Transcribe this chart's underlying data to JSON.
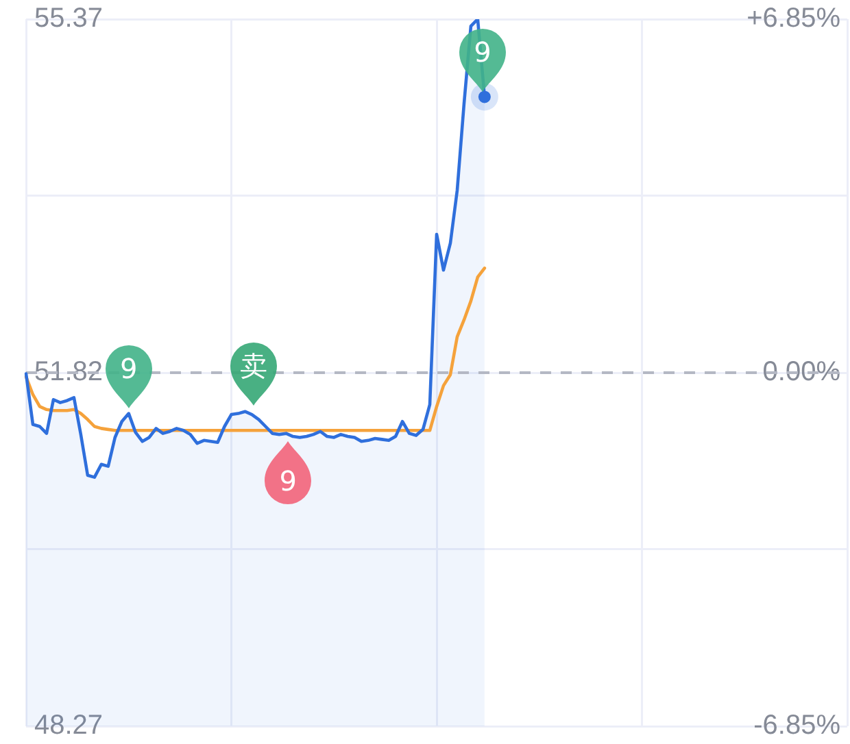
{
  "chart_data": {
    "type": "line",
    "categories": [
      null,
      null,
      null,
      null,
      null,
      null,
      null,
      null,
      null,
      null,
      null,
      null,
      null,
      null,
      null,
      null,
      null,
      null,
      null,
      null,
      null,
      null,
      null,
      null,
      null,
      null,
      null,
      null,
      null,
      null,
      null,
      null,
      null,
      null,
      null,
      null,
      null,
      null,
      null,
      null,
      null,
      null,
      null,
      null,
      null,
      null,
      null,
      null,
      null,
      null,
      null,
      null,
      null,
      null,
      null,
      null,
      null,
      null,
      null,
      null,
      null,
      null,
      null,
      null,
      null,
      null,
      null,
      null,
      null,
      null,
      null,
      null,
      null,
      null,
      null,
      null,
      null,
      null,
      null,
      null,
      null,
      null,
      null,
      null,
      null,
      null,
      null,
      null,
      null,
      null,
      null,
      null,
      null,
      null,
      null,
      null,
      null,
      null,
      null,
      null,
      null,
      null,
      null,
      null,
      null,
      null,
      null,
      null,
      null,
      null,
      null,
      null,
      null,
      null,
      null,
      null,
      null,
      null,
      null,
      null,
      null
    ],
    "series": [
      {
        "type": "area",
        "color": "#2f6fdc",
        "values": [
          51.81,
          51.3,
          51.28,
          51.21,
          51.55,
          51.52,
          51.54,
          51.57,
          51.2,
          50.79,
          50.77,
          50.9,
          50.88,
          51.17,
          51.33,
          51.41,
          51.22,
          51.13,
          51.17,
          51.26,
          51.21,
          51.23,
          51.26,
          51.24,
          51.2,
          51.11,
          51.14,
          51.13,
          51.12,
          51.28,
          51.4,
          51.41,
          51.43,
          51.4,
          51.35,
          51.28,
          51.21,
          51.2,
          51.21,
          51.18,
          51.17,
          51.18,
          51.2,
          51.23,
          51.18,
          51.17,
          51.2,
          51.18,
          51.17,
          51.13,
          51.14,
          51.16,
          51.15,
          51.14,
          51.18,
          51.33,
          51.21,
          51.19,
          51.25,
          51.5,
          53.21,
          52.85,
          53.12,
          53.65,
          54.52,
          55.3,
          55.37,
          54.59,
          null,
          null,
          null,
          null,
          null,
          null,
          null,
          null,
          null,
          null,
          null,
          null,
          null,
          null,
          null,
          null,
          null,
          null,
          null,
          null,
          null,
          null,
          null,
          null,
          null,
          null,
          null,
          null,
          null,
          null,
          null,
          null,
          null,
          null,
          null,
          null,
          null,
          null,
          null,
          null,
          null,
          null,
          null,
          null,
          null,
          null,
          null,
          null,
          null,
          null,
          null,
          null,
          null
        ]
      },
      {
        "type": "line",
        "color": "#f5a23b",
        "values": [
          51.78,
          51.6,
          51.48,
          51.45,
          51.44,
          51.44,
          51.44,
          51.45,
          51.41,
          51.35,
          51.28,
          51.26,
          51.25,
          51.24,
          51.24,
          51.24,
          51.24,
          51.24,
          51.24,
          51.24,
          51.24,
          51.24,
          51.24,
          51.24,
          51.24,
          51.24,
          51.24,
          51.24,
          51.24,
          51.24,
          51.24,
          51.24,
          51.24,
          51.24,
          51.24,
          51.24,
          51.24,
          51.24,
          51.24,
          51.24,
          51.24,
          51.24,
          51.24,
          51.24,
          51.24,
          51.24,
          51.24,
          51.24,
          51.24,
          51.24,
          51.24,
          51.24,
          51.24,
          51.24,
          51.24,
          51.24,
          51.24,
          51.24,
          51.24,
          51.24,
          51.48,
          51.69,
          51.8,
          52.18,
          52.35,
          52.54,
          52.78,
          52.87,
          null,
          null,
          null,
          null,
          null,
          null,
          null,
          null,
          null,
          null,
          null,
          null,
          null,
          null,
          null,
          null,
          null,
          null,
          null,
          null,
          null,
          null,
          null,
          null,
          null,
          null,
          null,
          null,
          null,
          null,
          null,
          null,
          null,
          null,
          null,
          null,
          null,
          null,
          null,
          null,
          null,
          null,
          null,
          null,
          null,
          null,
          null,
          null,
          null,
          null,
          null,
          null,
          null
        ]
      }
    ],
    "ylim": [
      48.27,
      55.37
    ],
    "yticks": [
      48.27,
      {
        "value": 50.05,
        "label": null
      },
      51.82,
      {
        "value": 53.6,
        "label": null
      },
      55.37
    ],
    "y2lim": [
      -6.85,
      6.85
    ],
    "y2ticks": [
      {
        "value": -6.85,
        "label": "-6.85%"
      },
      {
        "value": 0,
        "label": "0.00%"
      },
      {
        "value": 6.85,
        "label": "+6.85%"
      }
    ],
    "grid": true,
    "ref_lines": [
      {
        "axis": "y",
        "value": 51.82,
        "color": "#b4b8c4",
        "line_style": "dashed"
      }
    ],
    "annotations": [
      {
        "text": "9",
        "y": 51.41
      },
      {
        "text": "卖",
        "y": 51.43
      },
      {
        "text": "9",
        "y": 51.2
      },
      {
        "text": "9",
        "y": 54.59
      }
    ]
  }
}
